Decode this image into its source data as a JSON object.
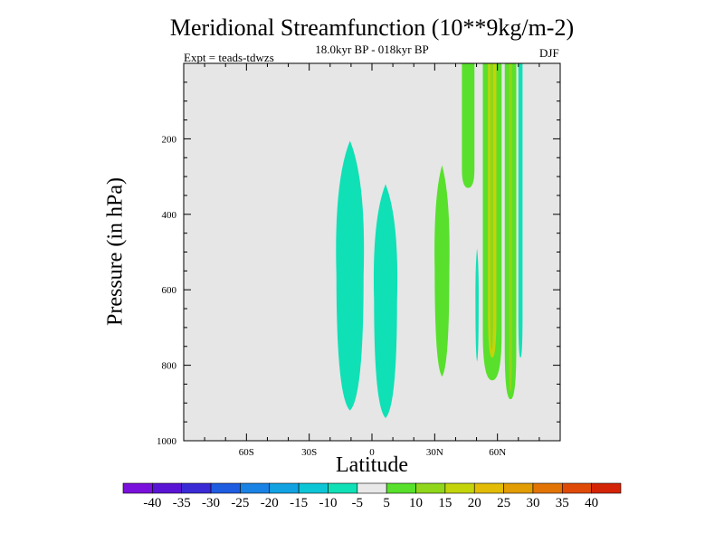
{
  "chart_data": {
    "type": "contour",
    "title": "Meridional Streamfunction (10**9kg/m-2)",
    "subtitle": "18.0kyr BP - 018kyr BP",
    "experiment_label": "Expt = teads-tdwzs",
    "season": "DJF",
    "xlabel": "Latitude",
    "ylabel": "Pressure (in hPa)",
    "xlim": [
      -90,
      90
    ],
    "ylim": [
      1000,
      0
    ],
    "y_inverted": true,
    "x_ticks": [
      {
        "value": -60,
        "label": "60S"
      },
      {
        "value": -30,
        "label": "30S"
      },
      {
        "value": 0,
        "label": "0"
      },
      {
        "value": 30,
        "label": "30N"
      },
      {
        "value": 60,
        "label": "60N"
      }
    ],
    "y_ticks": [
      {
        "value": 200,
        "label": "200"
      },
      {
        "value": 400,
        "label": "400"
      },
      {
        "value": 600,
        "label": "600"
      },
      {
        "value": 800,
        "label": "800"
      },
      {
        "value": 1000,
        "label": "1000"
      }
    ],
    "background_color": "#e6e6e6",
    "colorbar": {
      "levels": [
        "-40",
        "-35",
        "-30",
        "-25",
        "-20",
        "-15",
        "-10",
        "-5",
        "5",
        "10",
        "15",
        "20",
        "25",
        "30",
        "35",
        "40"
      ],
      "colors": [
        "#7a10dc",
        "#5a14d4",
        "#3a2ad6",
        "#1e5ce0",
        "#1a82e4",
        "#12a2e2",
        "#0cc6d6",
        "#10e0b6",
        "#e8e8e8",
        "#58e02c",
        "#90d61a",
        "#c4d40a",
        "#e2bc06",
        "#e29c04",
        "#e27406",
        "#e04a08",
        "#d42408"
      ]
    },
    "features": [
      {
        "name": "negative-cell-south",
        "level": -10,
        "color": "#10e0b6",
        "lat_range": [
          -17,
          -4
        ],
        "p_range": [
          205,
          920
        ]
      },
      {
        "name": "negative-cell-equator",
        "level": -10,
        "color": "#10e0b6",
        "lat_range": [
          1,
          12
        ],
        "p_range": [
          320,
          940
        ]
      },
      {
        "name": "positive-cell-30n",
        "level": 10,
        "color": "#58e02c",
        "lat_range": [
          30,
          37
        ],
        "p_range": [
          270,
          830
        ]
      },
      {
        "name": "positive-column-45n",
        "level": 10,
        "color": "#58e02c",
        "lat_range": [
          43,
          49
        ],
        "p_range": [
          0,
          330
        ]
      },
      {
        "name": "negative-sliver-50n",
        "level": -10,
        "color": "#10e0b6",
        "lat_range": [
          49.5,
          51
        ],
        "p_range": [
          490,
          790
        ]
      },
      {
        "name": "positive-column-55n",
        "level": 10,
        "color": "#58e02c",
        "lat_range": [
          53,
          62
        ],
        "p_range": [
          0,
          840
        ]
      },
      {
        "name": "core-column-57n",
        "level": 20,
        "color": "#c4d40a",
        "lat_range": [
          55.5,
          59.5
        ],
        "p_range": [
          0,
          780
        ]
      },
      {
        "name": "inner-column-57n",
        "level": 15,
        "color": "#90d61a",
        "lat_range": [
          56.5,
          58
        ],
        "p_range": [
          0,
          760
        ]
      },
      {
        "name": "positive-column-65n",
        "level": 10,
        "color": "#58e02c",
        "lat_range": [
          63.5,
          69
        ],
        "p_range": [
          0,
          890
        ]
      },
      {
        "name": "positive-core-66n",
        "level": 15,
        "color": "#90d61a",
        "lat_range": [
          65.5,
          67
        ],
        "p_range": [
          0,
          870
        ]
      },
      {
        "name": "negative-column-71n",
        "level": -10,
        "color": "#10e0b6",
        "lat_range": [
          70,
          72
        ],
        "p_range": [
          0,
          780
        ]
      }
    ]
  }
}
